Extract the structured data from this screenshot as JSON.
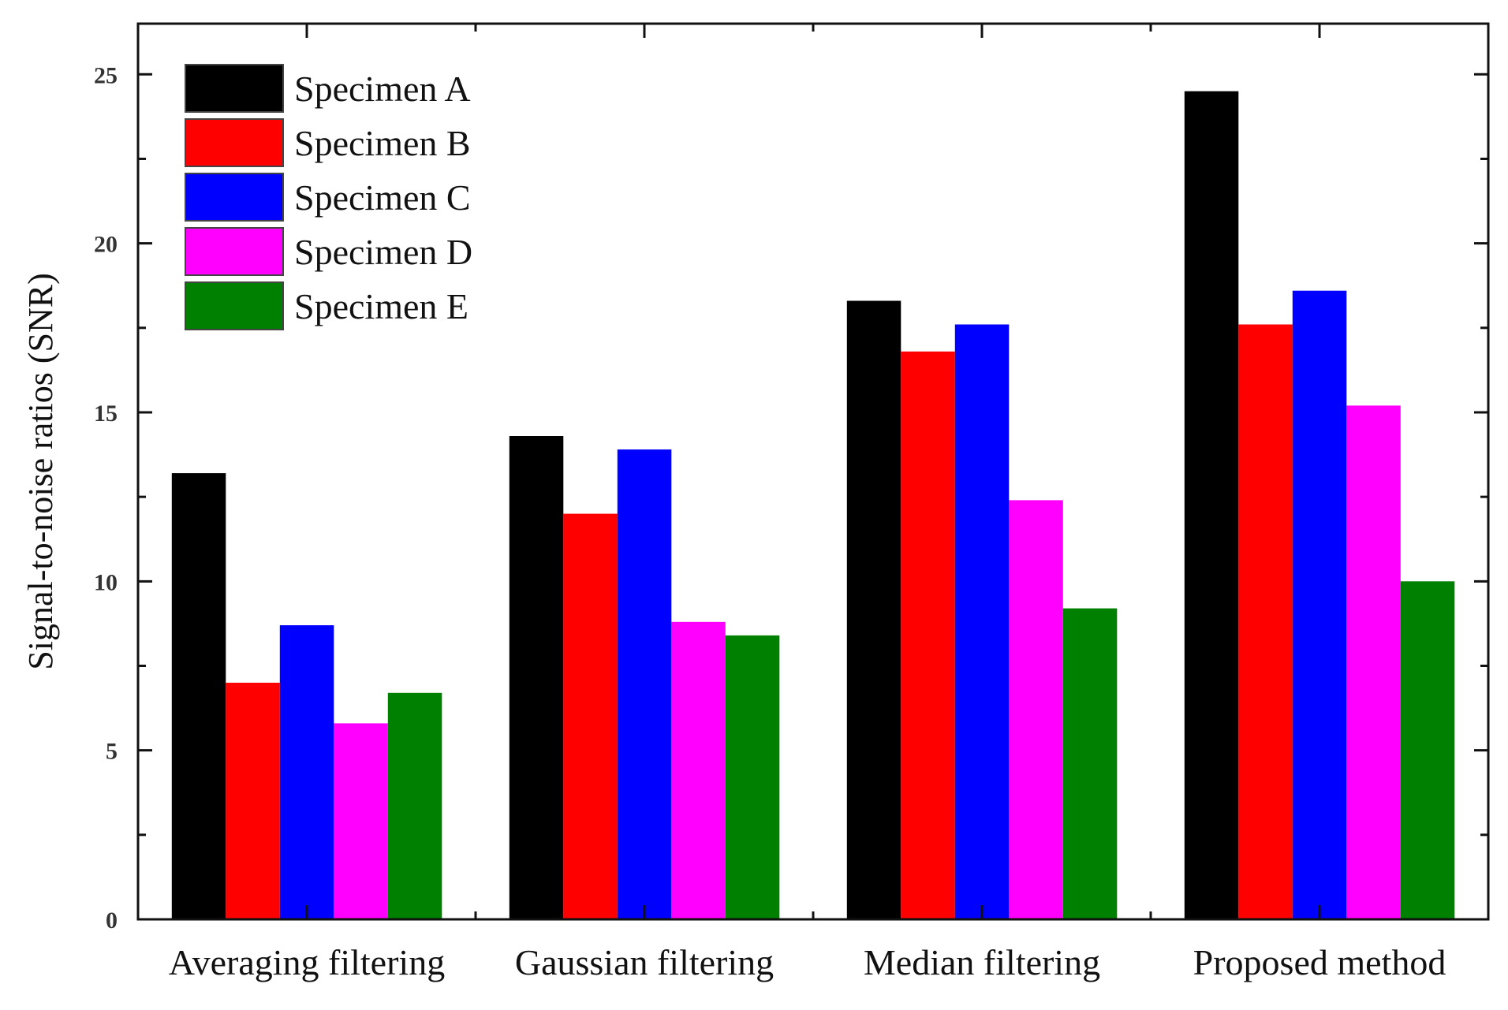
{
  "chart_data": {
    "type": "bar",
    "title": "",
    "xlabel": "",
    "ylabel": "Signal-to-noise ratios (SNR)",
    "ylim": [
      0,
      26.5
    ],
    "yticks": [
      0,
      5,
      10,
      15,
      20,
      25
    ],
    "grid": false,
    "legend_position": "top-left",
    "categories": [
      "Averaging filtering",
      "Gaussian filtering",
      "Median filtering",
      "Proposed method"
    ],
    "series": [
      {
        "name": "Specimen A",
        "color": "#000000",
        "values": [
          13.2,
          14.3,
          18.3,
          24.5
        ]
      },
      {
        "name": "Specimen B",
        "color": "#ff0000",
        "values": [
          7.0,
          12.0,
          16.8,
          17.6
        ]
      },
      {
        "name": "Specimen C",
        "color": "#0000ff",
        "values": [
          8.7,
          13.9,
          17.6,
          18.6
        ]
      },
      {
        "name": "Specimen D",
        "color": "#ff00ff",
        "values": [
          5.8,
          8.8,
          12.4,
          15.2
        ]
      },
      {
        "name": "Specimen E",
        "color": "#008000",
        "values": [
          6.7,
          8.4,
          9.2,
          10.0
        ]
      }
    ]
  }
}
